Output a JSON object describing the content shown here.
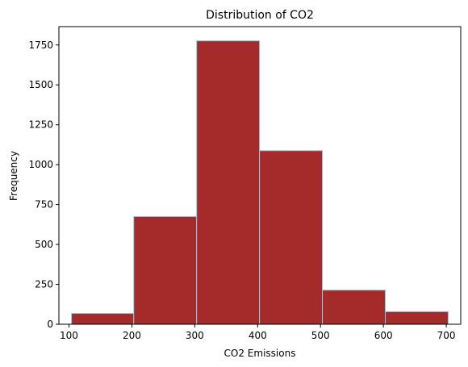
{
  "chart_data": {
    "type": "bar",
    "title": "Distribution of CO2",
    "xlabel": "CO2 Emissions",
    "ylabel": "Frequency",
    "bins": [
      {
        "start": 104,
        "end": 203,
        "count": 68
      },
      {
        "start": 203,
        "end": 303,
        "count": 675
      },
      {
        "start": 303,
        "end": 403,
        "count": 1776
      },
      {
        "start": 403,
        "end": 503,
        "count": 1088
      },
      {
        "start": 503,
        "end": 603,
        "count": 214
      },
      {
        "start": 603,
        "end": 703,
        "count": 79
      }
    ],
    "xlim": [
      84,
      723
    ],
    "ylim": [
      0,
      1865
    ],
    "xticks": [
      100,
      200,
      300,
      400,
      500,
      600,
      700
    ],
    "yticks": [
      0,
      250,
      500,
      750,
      1000,
      1250,
      1500,
      1750
    ],
    "grid": false,
    "colors": {
      "bar_fill": "#a52a2a",
      "bar_edge": "#87ceeb",
      "axis": "#000000"
    }
  }
}
